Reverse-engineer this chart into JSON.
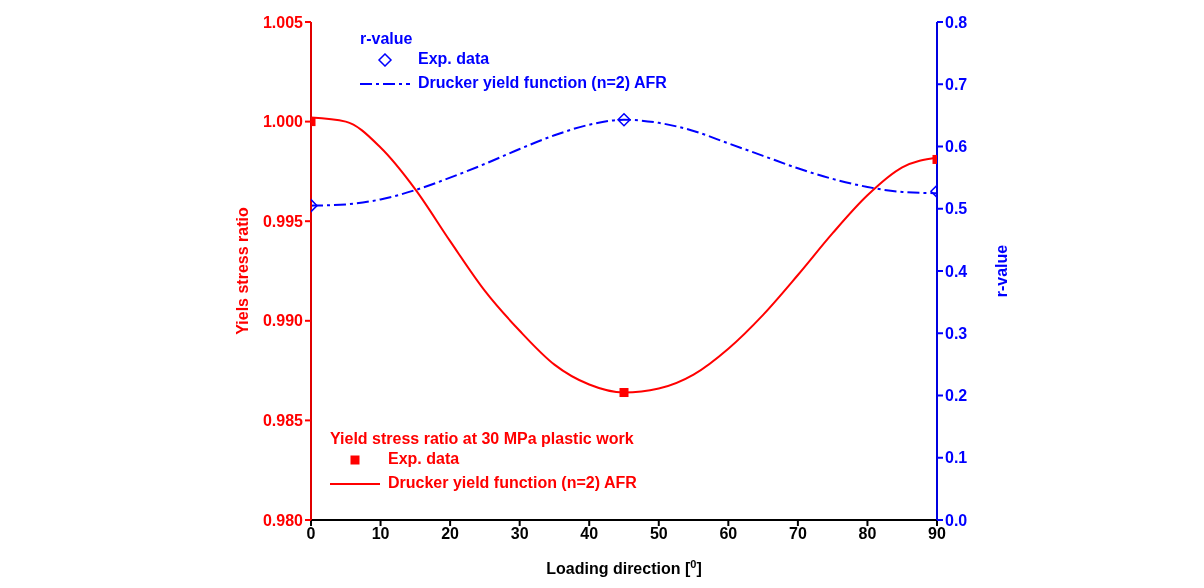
{
  "chart_data": {
    "type": "line",
    "xlabel": "Loading direction [$^{0}$]",
    "ylabel": "Yiels stress ratio",
    "y2label": "r-value",
    "xlim": [
      0,
      90
    ],
    "xticks": [
      0,
      10,
      20,
      30,
      40,
      50,
      60,
      70,
      80,
      90
    ],
    "ylim": [
      0.98,
      1.005
    ],
    "yticks": [
      {
        "value": 0.98,
        "label": "0.980"
      },
      {
        "value": 0.985,
        "label": "0.985"
      },
      {
        "value": 0.99,
        "label": "0.990"
      },
      {
        "value": 0.995,
        "label": "0.995"
      },
      {
        "value": 1.0,
        "label": "1.000"
      },
      {
        "value": 1.005,
        "label": "1.005"
      }
    ],
    "y2lim": [
      0,
      0.8
    ],
    "y2ticks": [
      {
        "value": 0,
        "label": "0.0"
      },
      0.1,
      0.2,
      0.3,
      0.4,
      0.5,
      0.6,
      0.7,
      0.8
    ],
    "legend": "left",
    "grid": false,
    "annotations": [
      "r-value",
      "Yield stress ratio at 30 MPa plastic work"
    ],
    "series": [
      {
        "name": "Exp. data",
        "type": "scatter",
        "marker": "diamond",
        "axis": "y2",
        "color": "#0000ff",
        "x": [
          0,
          45,
          90
        ],
        "values": [
          0.505,
          0.643,
          0.528
        ]
      },
      {
        "name": "Drucker yield function (n=2) AFR",
        "line_style": "dashdot",
        "marker": "none",
        "axis": "y2",
        "color": "#0000ff",
        "x": [
          0,
          5,
          10,
          15,
          20,
          25,
          30,
          35,
          40,
          45,
          50,
          55,
          60,
          65,
          70,
          75,
          80,
          85,
          90
        ],
        "values": [
          0.505,
          0.507,
          0.515,
          0.53,
          0.55,
          0.572,
          0.596,
          0.618,
          0.635,
          0.643,
          0.638,
          0.625,
          0.605,
          0.585,
          0.565,
          0.548,
          0.535,
          0.527,
          0.525
        ]
      },
      {
        "name": "Exp. data",
        "type": "scatter",
        "marker": "square",
        "color": "#ff0000",
        "x": [
          0,
          45,
          90
        ],
        "values": [
          1.0,
          0.9864,
          0.9981
        ]
      },
      {
        "name": "Drucker yield function (n=2) AFR",
        "line_style": "solid",
        "marker": "none",
        "color": "#ff0000",
        "x": [
          0,
          5,
          10,
          15,
          20,
          25,
          30,
          35,
          40,
          45,
          50,
          55,
          60,
          65,
          70,
          75,
          80,
          85,
          90
        ],
        "values": [
          1.0002,
          1.0,
          0.9987,
          0.9966,
          0.994,
          0.9915,
          0.9895,
          0.9878,
          0.9868,
          0.9864,
          0.9866,
          0.9873,
          0.9886,
          0.9903,
          0.9923,
          0.9944,
          0.9963,
          0.9977,
          0.9982
        ]
      }
    ]
  }
}
